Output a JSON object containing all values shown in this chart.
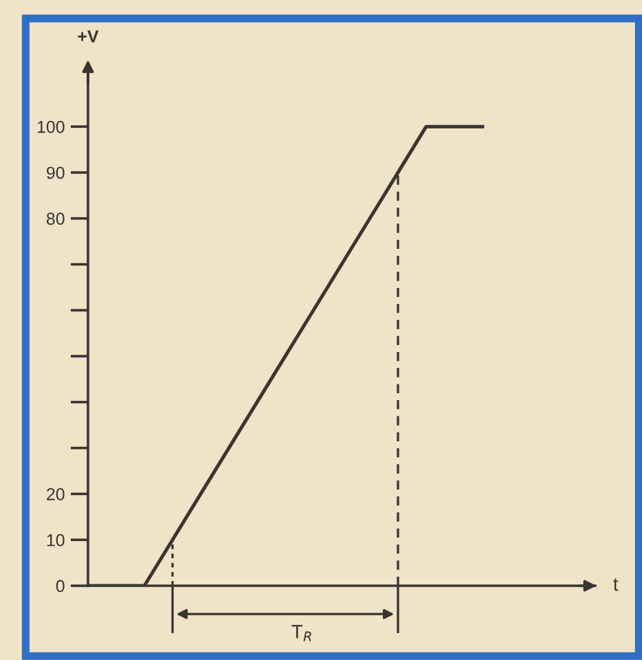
{
  "chart_data": {
    "type": "line",
    "ylabel": "+V",
    "xlabel": "t",
    "categories": [
      null,
      null,
      null,
      null,
      null,
      null,
      null,
      null,
      null,
      null,
      null,
      null,
      null,
      null,
      null,
      null,
      null,
      null,
      null
    ],
    "series": [
      {
        "color": "#3b3530",
        "values": [
          0,
          0,
          0,
          10,
          20,
          30,
          40,
          50,
          60,
          70,
          80,
          90,
          100,
          100,
          100,
          null,
          null,
          null,
          null
        ]
      }
    ],
    "ylim": [
      0,
      112
    ],
    "yticks": [
      0,
      10,
      20,
      {
        "value": 30,
        "label": null
      },
      {
        "value": 40,
        "label": null
      },
      {
        "value": 50,
        "label": null
      },
      {
        "value": 60,
        "label": null
      },
      {
        "value": 70,
        "label": null
      },
      80,
      90,
      100
    ],
    "annotations": [
      "T$_{R}$"
    ],
    "grid": false,
    "legend": false,
    "marker": "none",
    "line_style": "solid"
  }
}
